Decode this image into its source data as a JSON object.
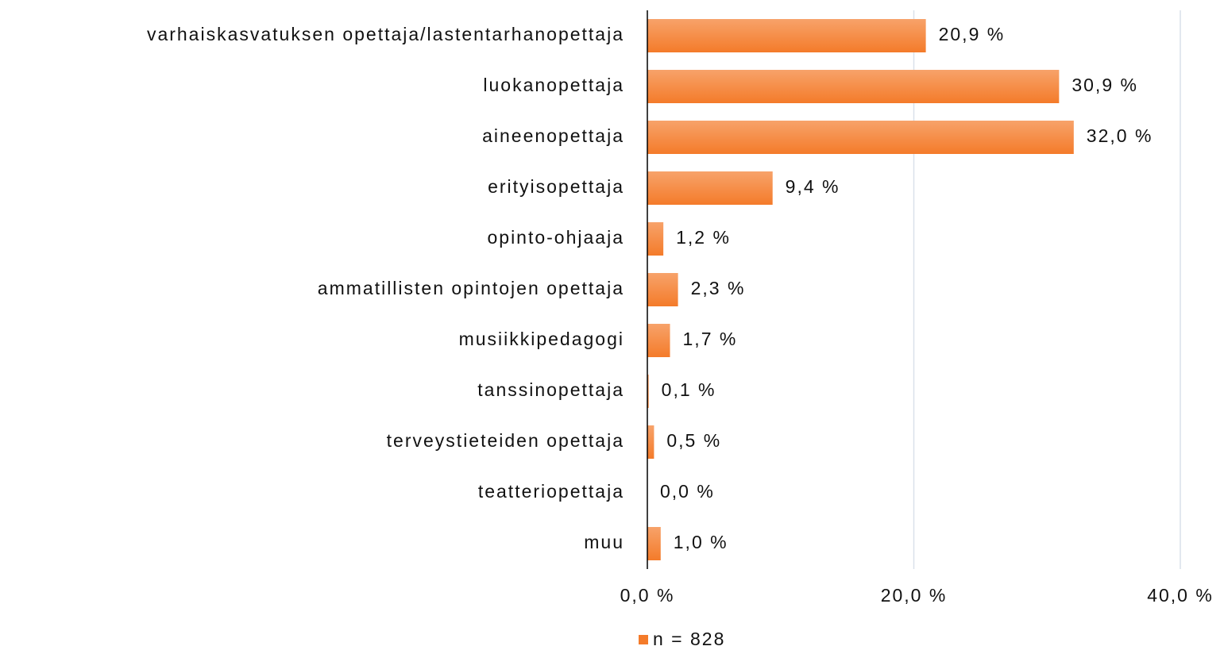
{
  "chart_data": {
    "type": "bar",
    "orientation": "horizontal",
    "categories": [
      "varhaiskasvatuksen opettaja/lastentarhanopettaja",
      "luokanopettaja",
      "aineenopettaja",
      "erityisopettaja",
      "opinto-ohjaaja",
      "ammatillisten opintojen opettaja",
      "musiikkipedagogi",
      "tanssinopettaja",
      "terveystieteiden opettaja",
      "teatteriopettaja",
      "muu"
    ],
    "series": [
      {
        "name": "n = 828",
        "color": "#f47b2a",
        "values": [
          20.9,
          30.9,
          32.0,
          9.4,
          1.2,
          2.3,
          1.7,
          0.1,
          0.5,
          0.0,
          1.0
        ],
        "value_labels": [
          "20,9 %",
          "30,9 %",
          "32,0 %",
          "9,4 %",
          "1,2 %",
          "2,3 %",
          "1,7 %",
          "0,1 %",
          "0,5 %",
          "0,0 %",
          "1,0 %"
        ]
      }
    ],
    "xlim": [
      0,
      40
    ],
    "xticks": [
      {
        "value": 0,
        "label": "0,0 %"
      },
      {
        "value": 20,
        "label": "20,0 %"
      },
      {
        "value": 40,
        "label": "40,0 %"
      }
    ],
    "grid": true,
    "legend": "bottom"
  }
}
